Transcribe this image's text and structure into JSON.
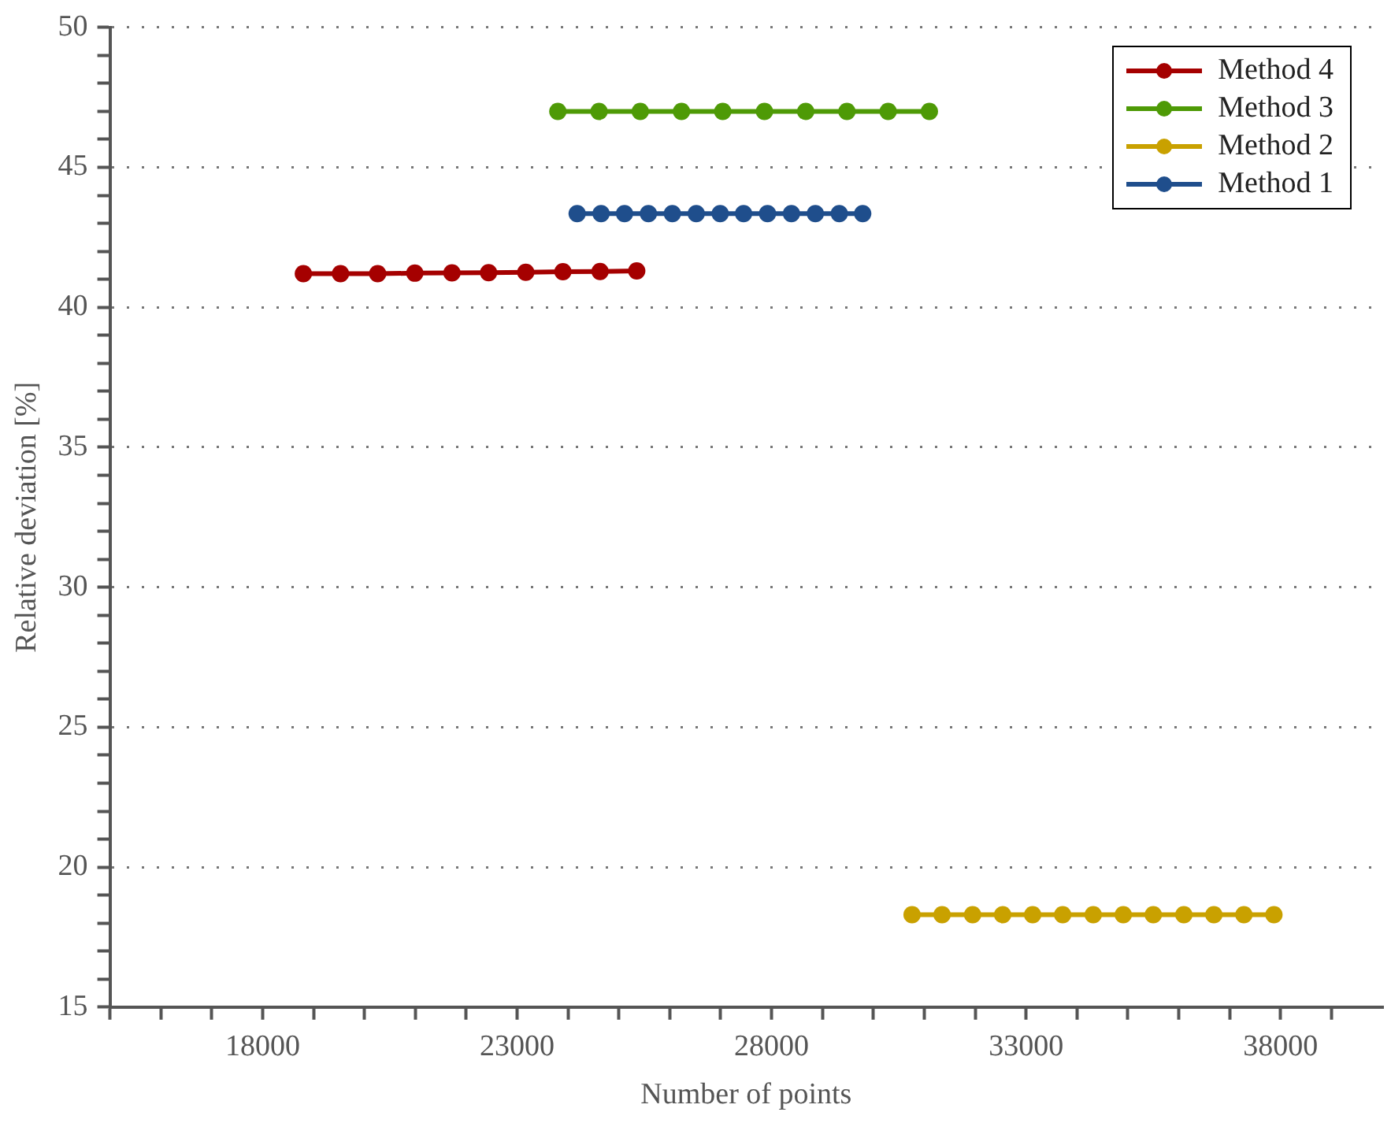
{
  "chart_data": {
    "type": "line",
    "xlabel": "Number of points",
    "ylabel": "Relative deviation [%]",
    "xlim": [
      15000,
      40000
    ],
    "xticks": [
      {
        "value": 15000,
        "label": null
      },
      {
        "value": 16000,
        "label": null
      },
      {
        "value": 17000,
        "label": null
      },
      18000,
      {
        "value": 19000,
        "label": null
      },
      {
        "value": 20000,
        "label": null
      },
      {
        "value": 21000,
        "label": null
      },
      {
        "value": 22000,
        "label": null
      },
      23000,
      {
        "value": 24000,
        "label": null
      },
      {
        "value": 25000,
        "label": null
      },
      {
        "value": 26000,
        "label": null
      },
      {
        "value": 27000,
        "label": null
      },
      28000,
      {
        "value": 29000,
        "label": null
      },
      {
        "value": 30000,
        "label": null
      },
      {
        "value": 31000,
        "label": null
      },
      {
        "value": 32000,
        "label": null
      },
      33000,
      {
        "value": 34000,
        "label": null
      },
      {
        "value": 35000,
        "label": null
      },
      {
        "value": 36000,
        "label": null
      },
      {
        "value": 37000,
        "label": null
      },
      38000,
      {
        "value": 39000,
        "label": null
      }
    ],
    "ylim": [
      15,
      50
    ],
    "yticks": [
      15,
      {
        "value": 16,
        "label": null
      },
      {
        "value": 17,
        "label": null
      },
      {
        "value": 18,
        "label": null
      },
      {
        "value": 19,
        "label": null
      },
      20,
      {
        "value": 21,
        "label": null
      },
      {
        "value": 22,
        "label": null
      },
      {
        "value": 23,
        "label": null
      },
      {
        "value": 24,
        "label": null
      },
      25,
      {
        "value": 26,
        "label": null
      },
      {
        "value": 27,
        "label": null
      },
      {
        "value": 28,
        "label": null
      },
      {
        "value": 29,
        "label": null
      },
      30,
      {
        "value": 31,
        "label": null
      },
      {
        "value": 32,
        "label": null
      },
      {
        "value": 33,
        "label": null
      },
      {
        "value": 34,
        "label": null
      },
      35,
      {
        "value": 36,
        "label": null
      },
      {
        "value": 37,
        "label": null
      },
      {
        "value": 38,
        "label": null
      },
      {
        "value": 39,
        "label": null
      },
      40,
      {
        "value": 41,
        "label": null
      },
      {
        "value": 42,
        "label": null
      },
      {
        "value": 43,
        "label": null
      },
      {
        "value": 44,
        "label": null
      },
      45,
      {
        "value": 46,
        "label": null
      },
      {
        "value": 47,
        "label": null
      },
      {
        "value": 48,
        "label": null
      },
      {
        "value": 49,
        "label": null
      },
      50
    ],
    "grid": "y",
    "legend": "top right",
    "marker": "circle",
    "line_style": "solid",
    "series": [
      {
        "name": "Method 4",
        "color": "#a50000",
        "x": [
          18800,
          19530,
          20260,
          20990,
          21720,
          22440,
          23170,
          23900,
          24630,
          25350
        ],
        "values": [
          41.2,
          41.2,
          41.2,
          41.22,
          41.23,
          41.24,
          41.25,
          41.27,
          41.28,
          41.3
        ]
      },
      {
        "name": "Method 3",
        "color": "#4e9a06",
        "x": [
          23800,
          24610,
          25420,
          26230,
          27040,
          27860,
          28670,
          29480,
          30290,
          31100
        ],
        "values": [
          47,
          47,
          47,
          47,
          47,
          47,
          47,
          47,
          47,
          47
        ]
      },
      {
        "name": "Method 2",
        "color": "#c9a100",
        "x": [
          30760,
          31350,
          31950,
          32540,
          33130,
          33720,
          34320,
          34910,
          35500,
          36100,
          36690,
          37280,
          37870
        ],
        "values": [
          18.3,
          18.3,
          18.3,
          18.3,
          18.3,
          18.3,
          18.3,
          18.3,
          18.3,
          18.3,
          18.3,
          18.3,
          18.3
        ]
      },
      {
        "name": "Method 1",
        "color": "#1f4e8c",
        "x": [
          24180,
          24650,
          25110,
          25580,
          26050,
          26520,
          26990,
          27450,
          27920,
          28390,
          28860,
          29330,
          29790
        ],
        "values": [
          43.35,
          43.35,
          43.35,
          43.35,
          43.35,
          43.35,
          43.35,
          43.35,
          43.35,
          43.35,
          43.35,
          43.35,
          43.35
        ]
      }
    ]
  }
}
